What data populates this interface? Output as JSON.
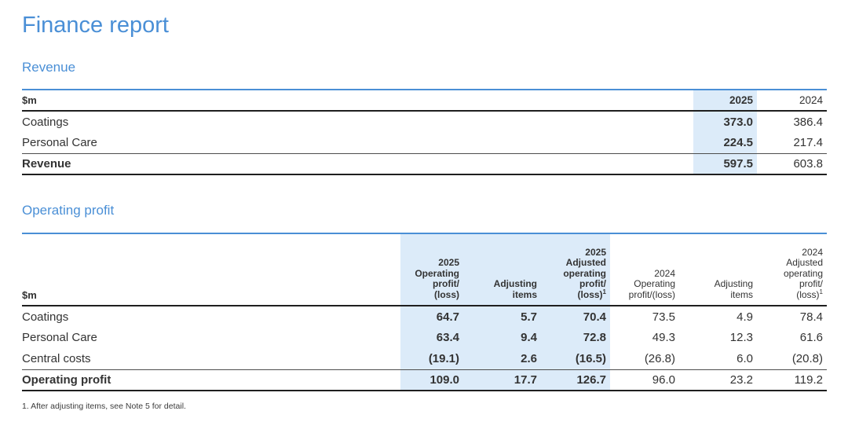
{
  "page": {
    "title": "Finance report",
    "footnote": "1. After adjusting items, see Note 5 for detail."
  },
  "colors": {
    "accent_blue": "#4a8fd6",
    "highlight_blue": "#dcebf9",
    "rule_dark": "#1f1f1f",
    "text": "#333333"
  },
  "revenue": {
    "heading": "Revenue",
    "table": {
      "unit_label": "$m",
      "columns": [
        "2025",
        "2024"
      ],
      "rows": [
        {
          "label": "Coatings",
          "y2025": "373.0",
          "y2024": "386.4",
          "total": false
        },
        {
          "label": "Personal Care",
          "y2025": "224.5",
          "y2024": "217.4",
          "total": false
        },
        {
          "label": "Revenue",
          "y2025": "597.5",
          "y2024": "603.8",
          "total": true
        }
      ]
    }
  },
  "operating": {
    "heading": "Operating profit",
    "table": {
      "unit_label": "$m",
      "columns": [
        {
          "lines": [
            "2025",
            "Operating",
            "profit/",
            "(loss)"
          ],
          "highlight": true
        },
        {
          "lines": [
            "Adjusting",
            "items"
          ],
          "highlight": true
        },
        {
          "lines": [
            "2025",
            "Adjusted",
            "operating",
            "profit/",
            "(loss)"
          ],
          "sup": "1",
          "highlight": true
        },
        {
          "lines": [
            "2024",
            "Operating",
            "profit/(loss)"
          ],
          "highlight": false
        },
        {
          "lines": [
            "Adjusting",
            "items"
          ],
          "highlight": false
        },
        {
          "lines": [
            "2024",
            "Adjusted",
            "operating",
            "profit/",
            "(loss)"
          ],
          "sup": "1",
          "highlight": false
        }
      ],
      "rows": [
        {
          "label": "Coatings",
          "values": [
            "64.7",
            "5.7",
            "70.4",
            "73.5",
            "4.9",
            "78.4"
          ],
          "total": false
        },
        {
          "label": "Personal Care",
          "values": [
            "63.4",
            "9.4",
            "72.8",
            "49.3",
            "12.3",
            "61.6"
          ],
          "total": false
        },
        {
          "label": "Central costs",
          "values": [
            "(19.1)",
            "2.6",
            "(16.5)",
            "(26.8)",
            "6.0",
            "(20.8)"
          ],
          "total": false
        },
        {
          "label": "Operating profit",
          "values": [
            "109.0",
            "17.7",
            "126.7",
            "96.0",
            "23.2",
            "119.2"
          ],
          "total": true
        }
      ]
    }
  }
}
